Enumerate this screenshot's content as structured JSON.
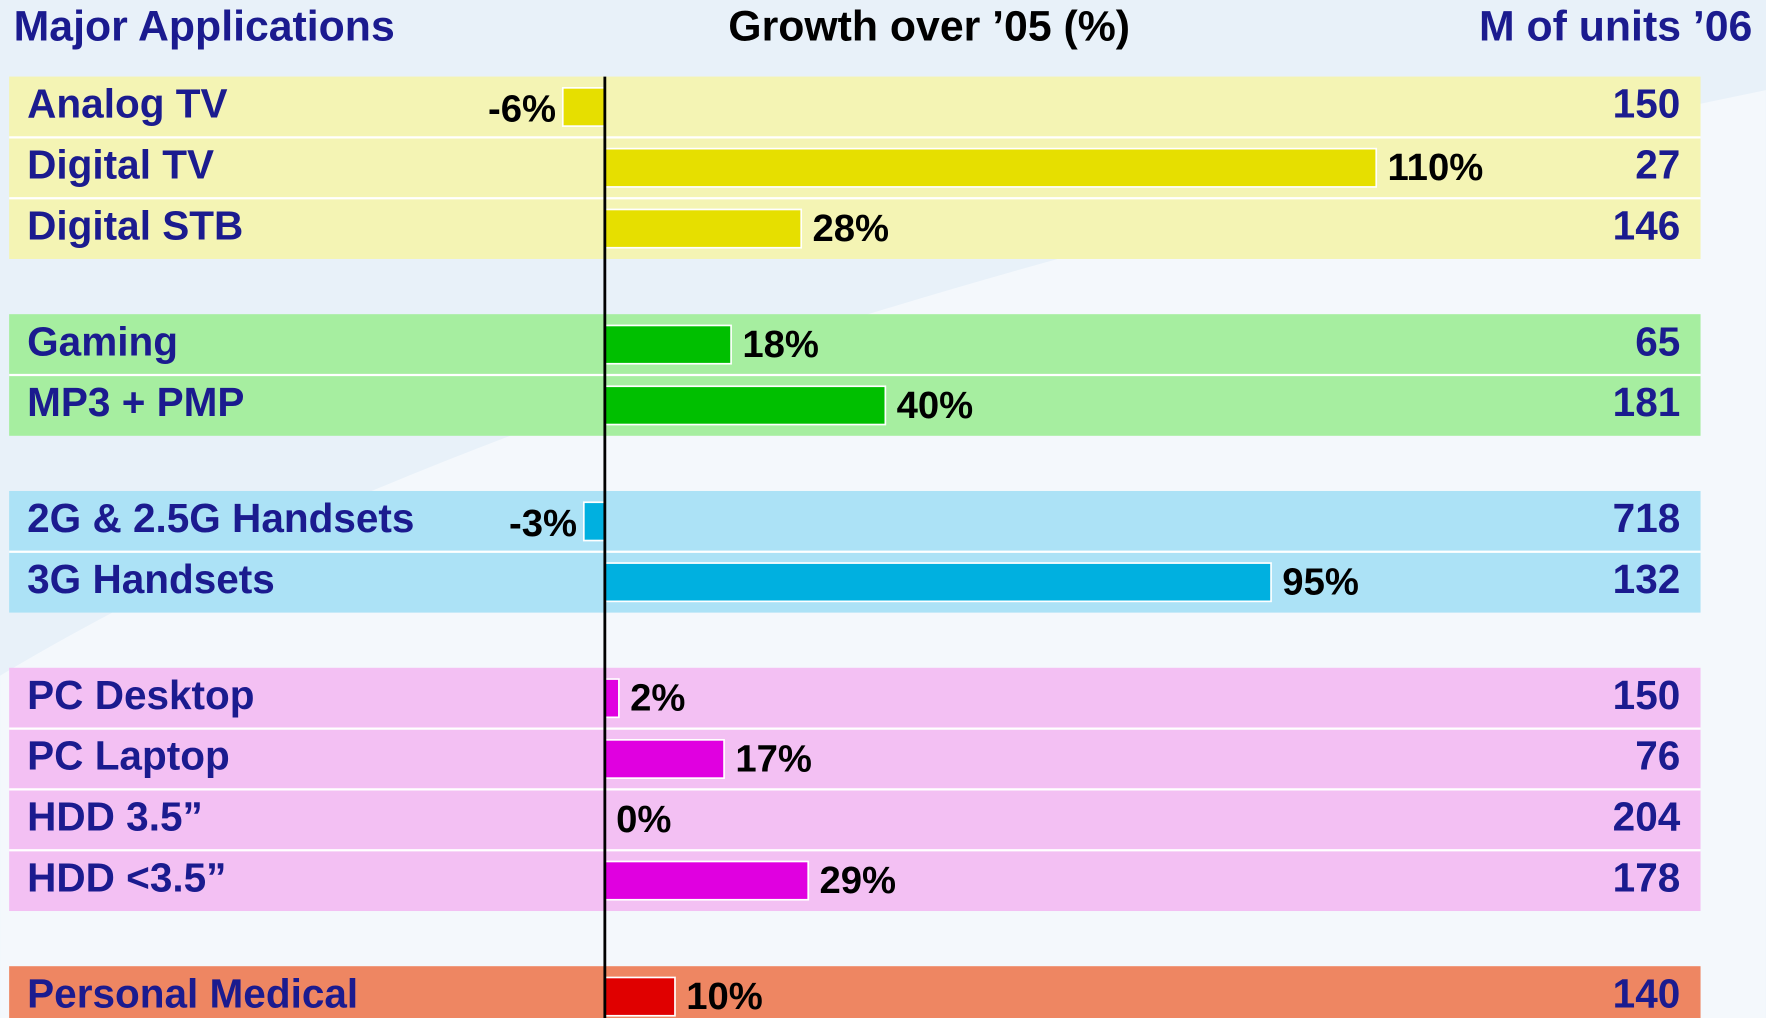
{
  "chart_data": {
    "type": "bar",
    "header_left": "Major Applications",
    "title": "Growth over ’05 (%)",
    "header_right": "M of units ’06",
    "groups": [
      {
        "color": "#e6df00",
        "background": "#f4f4b4",
        "categories": [
          "Analog TV",
          "Digital TV",
          "Digital STB"
        ],
        "values": [
          -6,
          110,
          28
        ],
        "value_labels": [
          "-6%",
          "110%",
          "28%"
        ],
        "units": [
          150,
          27,
          146
        ]
      },
      {
        "color": "#00bf00",
        "background": "#a6eea0",
        "categories": [
          "Gaming",
          "MP3 + PMP"
        ],
        "values": [
          18,
          40
        ],
        "value_labels": [
          "18%",
          "40%"
        ],
        "units": [
          65,
          181
        ]
      },
      {
        "color": "#00b0e0",
        "background": "#ace2f6",
        "categories": [
          "2G & 2.5G Handsets",
          "3G Handsets"
        ],
        "values": [
          -3,
          95
        ],
        "value_labels": [
          "-3%",
          "95%"
        ],
        "units": [
          718,
          132
        ]
      },
      {
        "color": "#e000e0",
        "background": "#f3c0f3",
        "categories": [
          "PC Desktop",
          "PC Laptop",
          "HDD 3.5”",
          "HDD <3.5”"
        ],
        "values": [
          2,
          17,
          0,
          29
        ],
        "value_labels": [
          "2%",
          "17%",
          "0%",
          "29%"
        ],
        "units": [
          150,
          76,
          204,
          178
        ]
      },
      {
        "color": "#e00000",
        "background": "#ee8662",
        "categories": [
          "Personal Medical"
        ],
        "values": [
          10
        ],
        "value_labels": [
          "10%"
        ],
        "units": [
          140
        ]
      }
    ]
  }
}
